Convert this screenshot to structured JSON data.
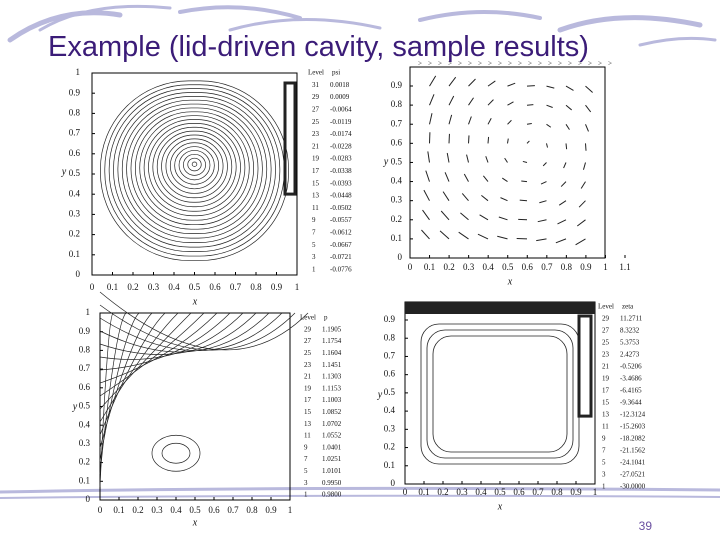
{
  "title": "Example (lid-driven cavity, sample results)",
  "page_number": "39",
  "panels": [
    {
      "x_label": "x",
      "y_label": "y",
      "xticks": [
        "0",
        "0.1",
        "0.2",
        "0.3",
        "0.4",
        "0.5",
        "0.6",
        "0.7",
        "0.8",
        "0.9",
        "1"
      ],
      "yticks": [
        "0",
        "0.1",
        "0.2",
        "0.3",
        "0.4",
        "0.5",
        "0.6",
        "0.7",
        "0.8",
        "0.9",
        "1"
      ],
      "legend": {
        "header": [
          "Level",
          "psi"
        ],
        "rows": [
          [
            "31",
            "0.0018"
          ],
          [
            "29",
            "0.0009"
          ],
          [
            "27",
            "-0.0064"
          ],
          [
            "25",
            "-0.0119"
          ],
          [
            "23",
            "-0.0174"
          ],
          [
            "21",
            "-0.0228"
          ],
          [
            "19",
            "-0.0283"
          ],
          [
            "17",
            "-0.0338"
          ],
          [
            "15",
            "-0.0393"
          ],
          [
            "13",
            "-0.0448"
          ],
          [
            "11",
            "-0.0502"
          ],
          [
            "9",
            "-0.0557"
          ],
          [
            "7",
            "-0.0612"
          ],
          [
            "5",
            "-0.0667"
          ],
          [
            "3",
            "-0.0721"
          ],
          [
            "1",
            "-0.0776"
          ]
        ]
      }
    },
    {
      "x_label": "x",
      "y_label": "y",
      "xticks": [
        "0",
        "0.1",
        "0.2",
        "0.3",
        "0.4",
        "0.5",
        "0.6",
        "0.7",
        "0.8",
        "0.9",
        "1",
        "1.1"
      ],
      "yticks": [
        "0",
        "0.1",
        "0.2",
        "0.3",
        "0.4",
        "0.5",
        "0.6",
        "0.7",
        "0.8",
        "0.9"
      ]
    },
    {
      "x_label": "x",
      "y_label": "y",
      "xticks": [
        "0",
        "0.1",
        "0.2",
        "0.3",
        "0.4",
        "0.5",
        "0.6",
        "0.7",
        "0.8",
        "0.9",
        "1"
      ],
      "yticks": [
        "0",
        "0.1",
        "0.2",
        "0.3",
        "0.4",
        "0.5",
        "0.6",
        "0.7",
        "0.8",
        "0.9",
        "1"
      ],
      "legend": {
        "header": [
          "Level",
          "p"
        ],
        "rows": [
          [
            "29",
            "1.1905"
          ],
          [
            "27",
            "1.1754"
          ],
          [
            "25",
            "1.1604"
          ],
          [
            "23",
            "1.1451"
          ],
          [
            "21",
            "1.1303"
          ],
          [
            "19",
            "1.1153"
          ],
          [
            "17",
            "1.1003"
          ],
          [
            "15",
            "1.0852"
          ],
          [
            "13",
            "1.0702"
          ],
          [
            "11",
            "1.0552"
          ],
          [
            "9",
            "1.0401"
          ],
          [
            "7",
            "1.0251"
          ],
          [
            "5",
            "1.0101"
          ],
          [
            "3",
            "0.9950"
          ],
          [
            "1",
            "0.9800"
          ]
        ]
      }
    },
    {
      "x_label": "x",
      "y_label": "y",
      "xticks": [
        "0",
        "0.1",
        "0.2",
        "0.3",
        "0.4",
        "0.5",
        "0.6",
        "0.7",
        "0.8",
        "0.9",
        "1"
      ],
      "yticks": [
        "0",
        "0.1",
        "0.2",
        "0.3",
        "0.4",
        "0.5",
        "0.6",
        "0.7",
        "0.8",
        "0.9"
      ],
      "legend": {
        "header": [
          "Level",
          "zeta"
        ],
        "rows": [
          [
            "29",
            "11.2711"
          ],
          [
            "27",
            "8.3232"
          ],
          [
            "25",
            "5.3753"
          ],
          [
            "23",
            "2.4273"
          ],
          [
            "21",
            "-0.5206"
          ],
          [
            "19",
            "-3.4686"
          ],
          [
            "17",
            "-6.4165"
          ],
          [
            "15",
            "-9.3644"
          ],
          [
            "13",
            "-12.3124"
          ],
          [
            "11",
            "-15.2603"
          ],
          [
            "9",
            "-18.2082"
          ],
          [
            "7",
            "-21.1562"
          ],
          [
            "5",
            "-24.1041"
          ],
          [
            "3",
            "-27.0521"
          ],
          [
            "1",
            "-30.0000"
          ]
        ]
      }
    }
  ]
}
